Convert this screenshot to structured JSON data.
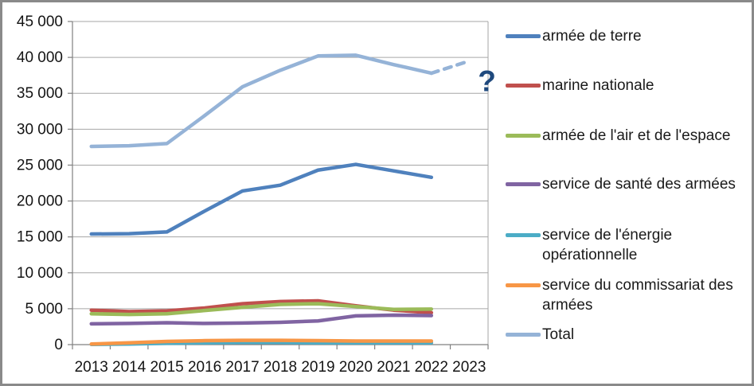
{
  "chart_data": {
    "type": "line",
    "title": "",
    "xlabel": "",
    "ylabel": "",
    "categories": [
      "2013",
      "2014",
      "2015",
      "2016",
      "2017",
      "2018",
      "2019",
      "2020",
      "2021",
      "2022",
      "2023"
    ],
    "ylim": [
      0,
      45000
    ],
    "ytick_step": 5000,
    "ytick_labels": [
      "0",
      "5 000",
      "10 000",
      "15 000",
      "20 000",
      "25 000",
      "30 000",
      "35 000",
      "40 000",
      "45 000"
    ],
    "grid": true,
    "legend_position": "right",
    "series": [
      {
        "name": "armée de terre",
        "color": "#4F81BD",
        "values": [
          15400,
          15450,
          15700,
          18600,
          21400,
          22200,
          24300,
          25100,
          24200,
          23300
        ]
      },
      {
        "name": "marine nationale",
        "color": "#C0504D",
        "values": [
          4800,
          4600,
          4700,
          5100,
          5700,
          6000,
          6100,
          5400,
          4800,
          4450
        ]
      },
      {
        "name": "armée de l'air et de l'espace",
        "color": "#9BBB59",
        "values": [
          4300,
          4200,
          4300,
          4750,
          5200,
          5600,
          5700,
          5300,
          4900,
          4950
        ]
      },
      {
        "name": "service de santé des armées",
        "color": "#8064A2",
        "values": [
          2900,
          2950,
          3050,
          2950,
          3000,
          3100,
          3300,
          4000,
          4100,
          4050
        ]
      },
      {
        "name": "service de l'énergie opérationnelle",
        "color": "#4BACC6",
        "values": [
          30,
          80,
          200,
          250,
          300,
          300,
          250,
          250,
          250,
          250
        ]
      },
      {
        "name": "service du commissariat des armées",
        "color": "#F79646",
        "values": [
          80,
          250,
          450,
          550,
          600,
          600,
          550,
          500,
          500,
          500
        ]
      },
      {
        "name": "Total",
        "color": "#95B3D7",
        "values": [
          27600,
          27700,
          28000,
          31900,
          35900,
          38200,
          40200,
          40300,
          39000,
          37800
        ],
        "forecast_value": 39500,
        "forecast_category": "2023",
        "forecast_style": "dashed"
      }
    ],
    "annotation": {
      "text": "?",
      "color": "#1F497D"
    }
  }
}
